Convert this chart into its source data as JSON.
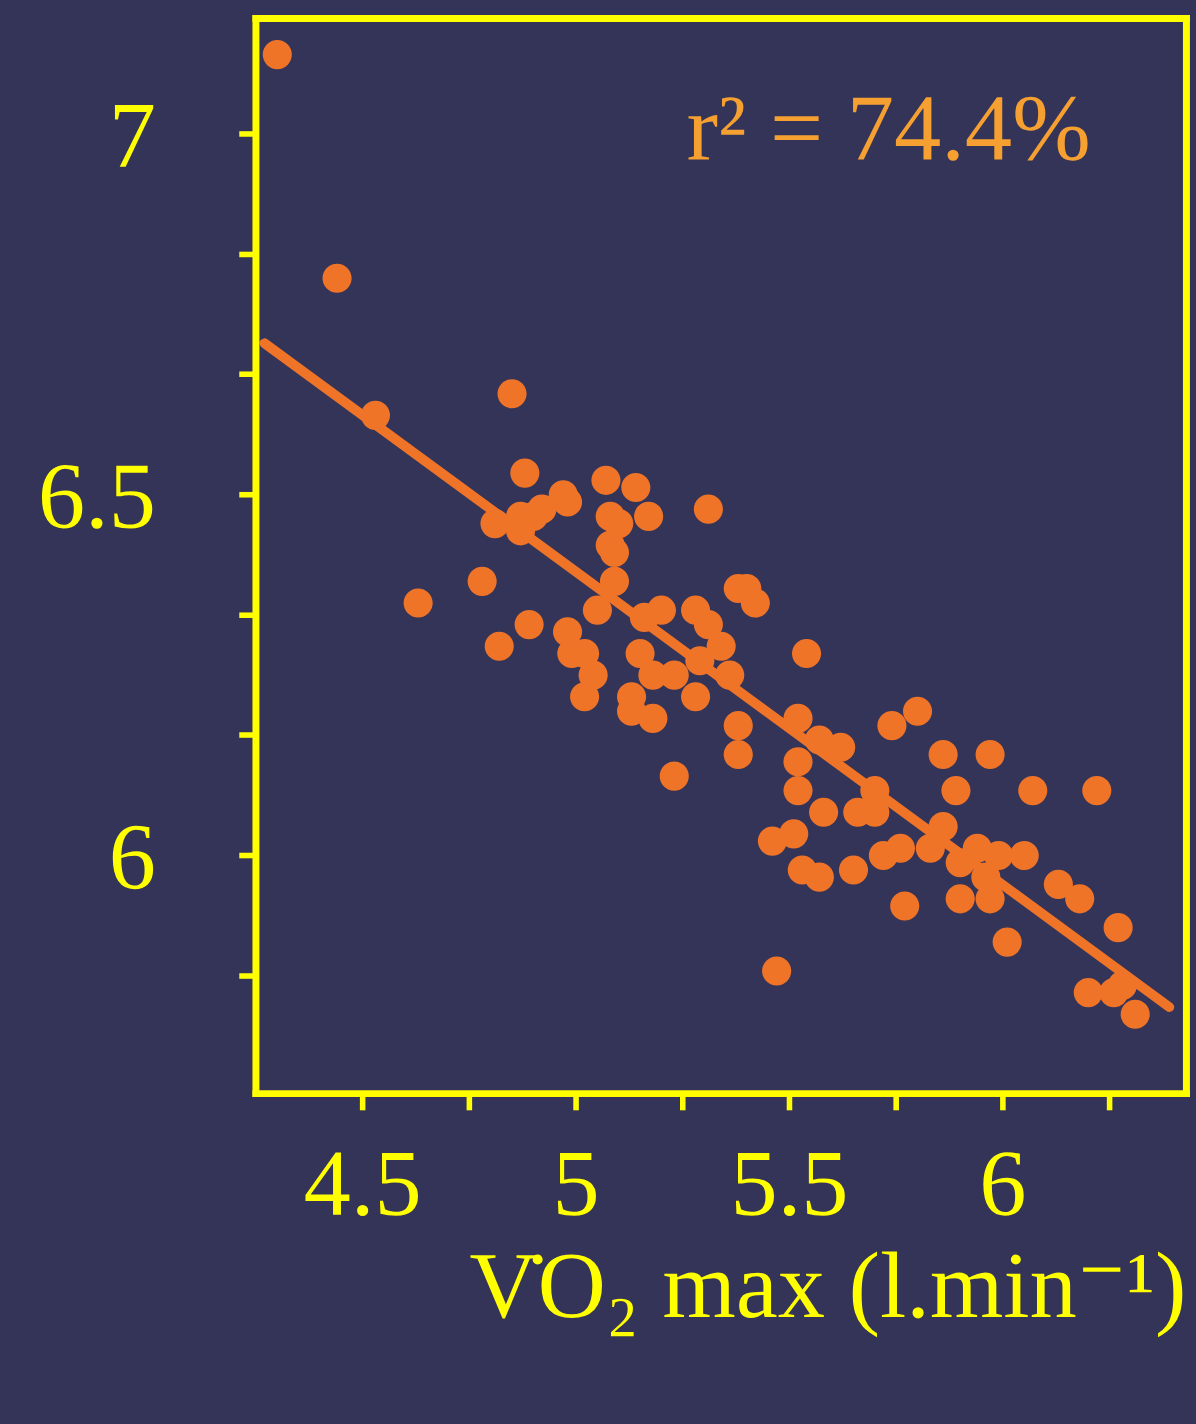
{
  "chart_data": {
    "type": "scatter",
    "xlabel": "V̇O₂ max (l.min⁻¹)",
    "annotations": [
      "r² = 74.4%"
    ],
    "xlim": [
      4.25,
      6.43
    ],
    "xticks": [
      4.5,
      {
        "value": 4.75,
        "label": null
      },
      5,
      {
        "value": 5.25,
        "label": null
      },
      5.5,
      {
        "value": 5.75,
        "label": null
      },
      6,
      {
        "value": 6.25,
        "label": null
      }
    ],
    "ylim": [
      5.67,
      7.16
    ],
    "yticks": [
      7,
      {
        "value": 6.833,
        "label": null
      },
      {
        "value": 6.667,
        "label": null
      },
      6.5,
      {
        "value": 6.333,
        "label": null
      },
      {
        "value": 6.167,
        "label": null
      },
      6,
      {
        "value": 5.833,
        "label": null
      }
    ],
    "grid": false,
    "marker": "circle",
    "series": [
      {
        "color": "#f07428",
        "x": [
          4.3,
          4.44,
          4.53,
          4.85,
          4.88,
          4.81,
          4.87,
          4.9,
          4.92,
          4.87,
          4.97,
          4.98,
          5.07,
          5.14,
          5.17,
          5.31,
          5.08,
          5.1,
          5.08,
          5.09,
          5.09,
          4.63,
          4.78,
          4.89,
          4.82,
          4.98,
          4.99,
          5.02,
          5.04,
          5.02,
          5.05,
          5.13,
          5.13,
          5.18,
          5.23,
          5.15,
          5.18,
          5.23,
          5.28,
          5.16,
          5.2,
          5.28,
          5.31,
          5.29,
          5.38,
          5.4,
          5.42,
          5.34,
          5.36,
          5.54,
          5.38,
          5.38,
          5.52,
          5.57,
          5.62,
          5.52,
          5.52,
          5.58,
          5.74,
          5.8,
          5.86,
          5.97,
          5.89,
          6.07,
          6.22,
          5.66,
          5.7,
          5.7,
          5.86,
          5.83,
          5.76,
          5.72,
          5.46,
          5.51,
          5.53,
          5.57,
          5.65,
          5.77,
          5.9,
          5.9,
          5.94,
          5.99,
          6.05,
          5.96,
          5.97,
          6.13,
          6.18,
          6.01,
          6.27,
          5.47,
          6.2,
          6.26,
          6.31,
          6.28
        ],
        "values": [
          7.11,
          6.8,
          6.61,
          6.64,
          6.53,
          6.46,
          6.47,
          6.47,
          6.48,
          6.45,
          6.5,
          6.49,
          6.52,
          6.51,
          6.47,
          6.48,
          6.47,
          6.46,
          6.43,
          6.42,
          6.38,
          6.35,
          6.38,
          6.32,
          6.29,
          6.31,
          6.28,
          6.28,
          6.25,
          6.22,
          6.34,
          6.22,
          6.2,
          6.19,
          6.11,
          6.28,
          6.25,
          6.25,
          6.22,
          6.33,
          6.34,
          6.34,
          6.32,
          6.27,
          6.37,
          6.37,
          6.35,
          6.29,
          6.25,
          6.28,
          6.18,
          6.14,
          6.19,
          6.16,
          6.15,
          6.13,
          6.09,
          6.06,
          6.18,
          6.2,
          6.14,
          6.14,
          6.09,
          6.09,
          6.09,
          6.06,
          6.06,
          6.09,
          6.04,
          6.01,
          6.01,
          6.0,
          6.02,
          6.03,
          5.98,
          5.97,
          5.98,
          5.93,
          5.94,
          5.99,
          6.01,
          6.0,
          6.0,
          5.97,
          5.94,
          5.96,
          5.94,
          5.88,
          5.9,
          5.84,
          5.81,
          5.81,
          5.78,
          5.82
        ]
      },
      {
        "type": "line",
        "color": "#f07428",
        "x": [
          4.27,
          6.39
        ],
        "values": [
          6.71,
          5.79
        ],
        "line_style": "solid",
        "marker": "none"
      }
    ]
  }
}
